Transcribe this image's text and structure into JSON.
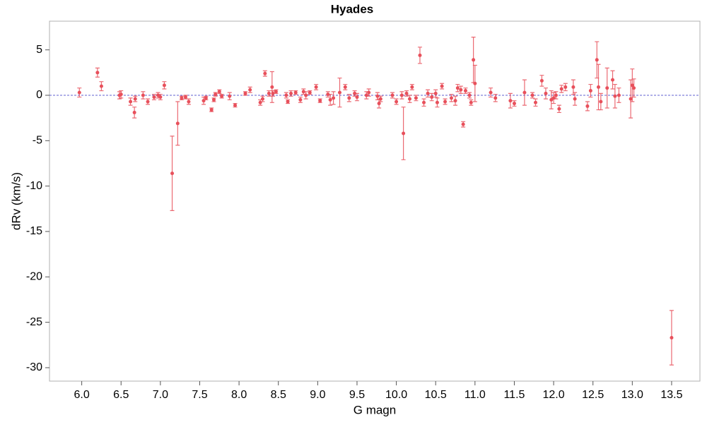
{
  "chart_data": {
    "type": "scatter",
    "title": "Hyades",
    "x_label": "G magn",
    "y_label": "dRv (km/s)",
    "color": "#e8505b",
    "hline": 0,
    "hline_color": "#6060d0",
    "xlim": [
      5.59,
      13.86
    ],
    "ylim": [
      -31.48,
      8.16
    ],
    "xticks": [
      {
        "value": 6,
        "label": "6.0"
      },
      {
        "value": 6.5,
        "label": "6.5"
      },
      {
        "value": 7,
        "label": "7.0"
      },
      {
        "value": 7.5,
        "label": "7.5"
      },
      {
        "value": 8,
        "label": "8.0"
      },
      {
        "value": 8.5,
        "label": "8.5"
      },
      {
        "value": 9,
        "label": "9.0"
      },
      {
        "value": 9.5,
        "label": "9.5"
      },
      {
        "value": 10,
        "label": "10.0"
      },
      {
        "value": 10.5,
        "label": "10.5"
      },
      {
        "value": 11,
        "label": "11.0"
      },
      {
        "value": 11.5,
        "label": "11.5"
      },
      {
        "value": 12,
        "label": "12.0"
      },
      {
        "value": 12.5,
        "label": "12.5"
      },
      {
        "value": 13,
        "label": "13.0"
      },
      {
        "value": 13.5,
        "label": "13.5"
      }
    ],
    "yticks": [
      5,
      0,
      -5,
      -10,
      -15,
      -20,
      -25,
      -30
    ],
    "x": [
      5.97,
      6.2,
      6.25,
      6.48,
      6.5,
      6.62,
      6.67,
      6.68,
      6.78,
      6.84,
      6.92,
      6.97,
      7.0,
      7.05,
      7.15,
      7.22,
      7.27,
      7.32,
      7.36,
      7.55,
      7.58,
      7.65,
      7.68,
      7.7,
      7.75,
      7.78,
      7.88,
      7.95,
      8.08,
      8.14,
      8.27,
      8.3,
      8.33,
      8.38,
      8.42,
      8.43,
      8.47,
      8.6,
      8.62,
      8.66,
      8.72,
      8.78,
      8.82,
      8.85,
      8.9,
      8.98,
      9.03,
      9.13,
      9.16,
      9.2,
      9.28,
      9.35,
      9.4,
      9.47,
      9.5,
      9.62,
      9.65,
      9.76,
      9.78,
      9.8,
      9.95,
      10.0,
      10.07,
      10.09,
      10.13,
      10.17,
      10.2,
      10.25,
      10.3,
      10.35,
      10.4,
      10.45,
      10.5,
      10.52,
      10.58,
      10.62,
      10.7,
      10.75,
      10.78,
      10.82,
      10.85,
      10.88,
      10.93,
      10.95,
      10.98,
      11.0,
      11.2,
      11.26,
      11.45,
      11.5,
      11.63,
      11.73,
      11.77,
      11.85,
      11.9,
      11.97,
      12.0,
      12.03,
      12.07,
      12.1,
      12.15,
      12.25,
      12.27,
      12.43,
      12.47,
      12.55,
      12.57,
      12.6,
      12.68,
      12.75,
      12.78,
      12.83,
      12.98,
      13.0,
      13.02,
      13.5
    ],
    "values": [
      0.3,
      2.5,
      1.0,
      0.0,
      0.1,
      -0.7,
      -1.9,
      -0.4,
      0.0,
      -0.7,
      -0.2,
      0.0,
      -0.2,
      1.1,
      -8.6,
      -3.1,
      -0.3,
      -0.2,
      -0.7,
      -0.6,
      -0.3,
      -1.6,
      -0.5,
      0.1,
      0.4,
      -0.1,
      -0.1,
      -1.1,
      0.2,
      0.6,
      -0.8,
      -0.4,
      2.4,
      0.2,
      0.9,
      0.2,
      0.4,
      0.0,
      -0.7,
      0.2,
      0.3,
      -0.5,
      0.4,
      0.0,
      0.3,
      0.9,
      -0.6,
      0.1,
      -0.5,
      -0.3,
      0.3,
      0.9,
      -0.3,
      0.2,
      -0.2,
      0.0,
      0.3,
      -0.1,
      -0.9,
      -0.4,
      0.0,
      -0.7,
      0.0,
      -4.2,
      0.2,
      -0.4,
      0.9,
      -0.3,
      4.4,
      -0.8,
      0.2,
      -0.2,
      0.2,
      -0.8,
      1.0,
      -0.7,
      -0.3,
      -0.6,
      0.8,
      0.6,
      -3.2,
      0.5,
      0.0,
      -0.8,
      3.9,
      1.3,
      0.3,
      -0.3,
      -0.6,
      -0.9,
      0.3,
      0.0,
      -0.8,
      1.6,
      0.2,
      -0.5,
      -0.3,
      0.0,
      -1.5,
      0.7,
      0.9,
      0.9,
      -0.4,
      -1.2,
      0.5,
      3.9,
      0.9,
      -0.7,
      0.8,
      1.7,
      -0.1,
      0.0,
      -0.4,
      1.1,
      0.8,
      -26.7
    ],
    "errors": [
      0.5,
      0.5,
      0.5,
      0.4,
      0.4,
      0.4,
      0.6,
      0.3,
      0.4,
      0.3,
      0.3,
      0.3,
      0.3,
      0.4,
      4.1,
      2.4,
      0.2,
      0.2,
      0.3,
      0.4,
      0.2,
      0.2,
      0.2,
      0.2,
      0.2,
      0.2,
      0.4,
      0.2,
      0.2,
      0.3,
      0.3,
      0.3,
      0.3,
      0.3,
      1.7,
      0.3,
      0.2,
      0.3,
      0.2,
      0.3,
      0.2,
      0.3,
      0.3,
      0.4,
      0.2,
      0.3,
      0.2,
      0.3,
      0.6,
      0.7,
      1.6,
      0.3,
      0.4,
      0.3,
      0.4,
      0.4,
      0.4,
      0.4,
      0.5,
      0.3,
      0.3,
      0.3,
      0.4,
      2.9,
      0.3,
      0.4,
      0.3,
      0.3,
      0.9,
      0.4,
      0.4,
      0.4,
      0.4,
      0.5,
      0.3,
      0.3,
      0.4,
      0.5,
      0.4,
      0.4,
      0.3,
      0.3,
      0.3,
      0.3,
      2.5,
      2.0,
      0.5,
      0.4,
      0.8,
      0.3,
      1.4,
      0.3,
      0.4,
      0.6,
      0.6,
      1.0,
      0.6,
      0.4,
      0.4,
      0.4,
      0.4,
      0.8,
      0.7,
      0.5,
      0.7,
      2.0,
      2.5,
      0.9,
      2.2,
      1.0,
      1.3,
      0.8,
      2.1,
      1.8,
      1.0,
      3.0
    ]
  }
}
